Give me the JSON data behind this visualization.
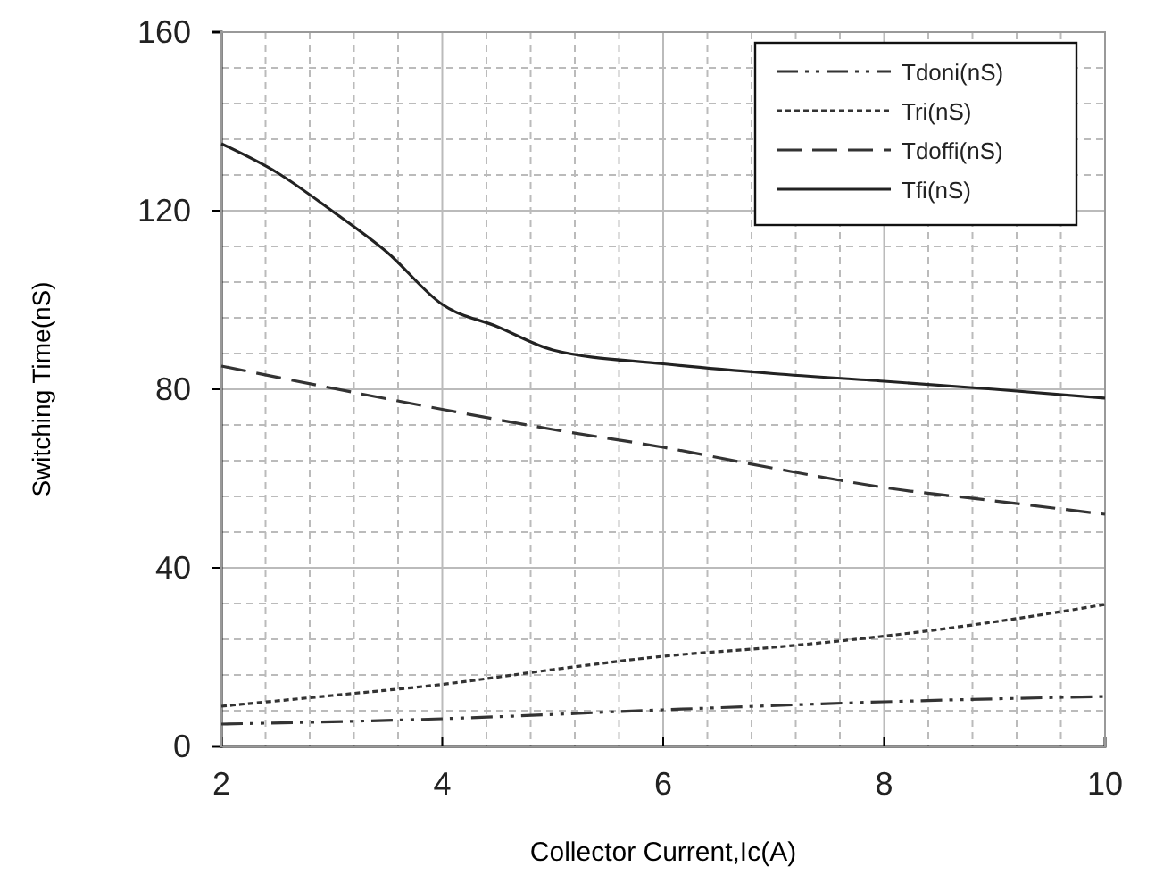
{
  "chart_data": {
    "type": "line",
    "xlabel": "Collector Current,Ic(A)",
    "ylabel": "Switching Time(nS)",
    "xlim": [
      2,
      10
    ],
    "xticks": [
      2,
      4,
      6,
      8,
      10
    ],
    "ylim": [
      0,
      160
    ],
    "yticks": [
      0,
      40,
      80,
      120,
      160
    ],
    "grid": true,
    "legend": "top right",
    "marker": "none",
    "series": [
      {
        "name": "Tdoni(nS)",
        "color": "#333333",
        "line_style": "dashdot",
        "x": [
          2,
          4,
          6,
          8,
          10
        ],
        "values": [
          5,
          6.2,
          8.2,
          10,
          11.2
        ]
      },
      {
        "name": "Tri(nS)",
        "color": "#333333",
        "line_style": "dotted",
        "x": [
          2,
          3,
          4,
          5,
          6,
          7,
          8,
          9,
          10
        ],
        "values": [
          9,
          11.4,
          13.9,
          17.2,
          20.2,
          22.2,
          24.7,
          27.9,
          31.8
        ]
      },
      {
        "name": "Tdoffi(nS)",
        "color": "#333333",
        "line_style": "dashed",
        "x": [
          2,
          4,
          5,
          6,
          7,
          8,
          9,
          10
        ],
        "values": [
          85.2,
          75.5,
          71,
          67,
          62.3,
          58,
          55,
          52
        ]
      },
      {
        "name": "Tfi(nS)",
        "color": "#222222",
        "line_style": "solid",
        "x": [
          2,
          2.5,
          3,
          3.5,
          4,
          4.5,
          5,
          6,
          7,
          8,
          9,
          10
        ],
        "values": [
          135,
          128.6,
          120,
          110.7,
          99,
          94,
          88.8,
          85.7,
          83.5,
          81.8,
          80,
          78
        ]
      }
    ]
  }
}
